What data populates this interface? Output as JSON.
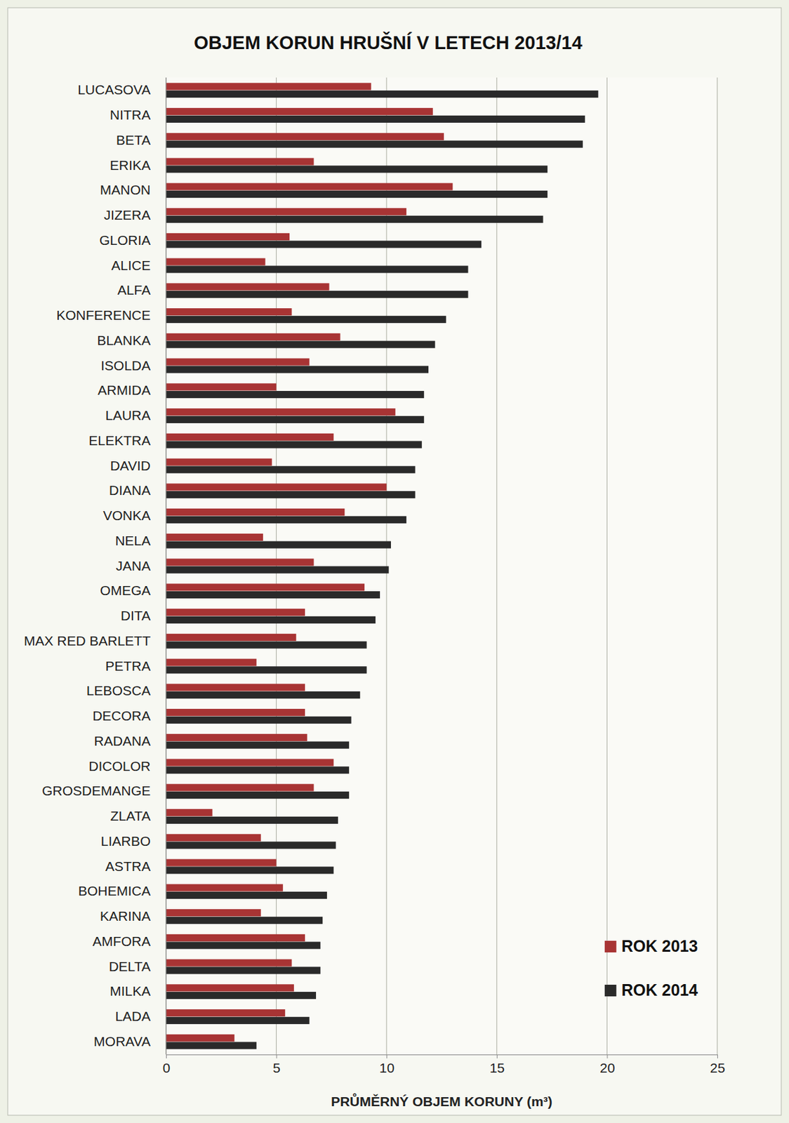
{
  "chart_data": {
    "type": "bar",
    "orientation": "horizontal",
    "title": "OBJEM KORUN HRUŠNÍ V LETECH 2013/14",
    "xlabel": "PRŮMĚRNÝ OBJEM KORUNY (m³)",
    "categories": [
      "LUCASOVA",
      "NITRA",
      "BETA",
      "ERIKA",
      "MANON",
      "JIZERA",
      "GLORIA",
      "ALICE",
      "ALFA",
      "KONFERENCE",
      "BLANKA",
      "ISOLDA",
      "ARMIDA",
      "LAURA",
      "ELEKTRA",
      "DAVID",
      "DIANA",
      "VONKA",
      "NELA",
      "JANA",
      "OMEGA",
      "DITA",
      "MAX RED BARLETT",
      "PETRA",
      "LEBOSCA",
      "DECORA",
      "RADANA",
      "DICOLOR",
      "GROSDEMANGE",
      "ZLATA",
      "LIARBO",
      "ASTRA",
      "BOHEMICA",
      "KARINA",
      "AMFORA",
      "DELTA",
      "MILKA",
      "LADA",
      "MORAVA"
    ],
    "series": [
      {
        "name": "ROK 2013",
        "color": "#a83434",
        "values": [
          9.3,
          12.1,
          12.6,
          6.7,
          13.0,
          10.9,
          5.6,
          4.5,
          7.4,
          5.7,
          7.9,
          6.5,
          5.0,
          10.4,
          7.6,
          4.8,
          10.0,
          8.1,
          4.4,
          6.7,
          9.0,
          6.3,
          5.9,
          4.1,
          6.3,
          6.3,
          6.4,
          7.6,
          6.7,
          2.1,
          4.3,
          5.0,
          5.3,
          4.3,
          6.3,
          5.7,
          5.8,
          5.4,
          3.1
        ]
      },
      {
        "name": "ROK 2014",
        "color": "#2a2a2a",
        "values": [
          19.6,
          19.0,
          18.9,
          17.3,
          17.3,
          17.1,
          14.3,
          13.7,
          13.7,
          12.7,
          12.2,
          11.9,
          11.7,
          11.7,
          11.6,
          11.3,
          11.3,
          10.9,
          10.2,
          10.1,
          9.7,
          9.5,
          9.1,
          9.1,
          8.8,
          8.4,
          8.3,
          8.3,
          8.3,
          7.8,
          7.7,
          7.6,
          7.3,
          7.1,
          7.0,
          7.0,
          6.8,
          6.5,
          4.1
        ]
      }
    ],
    "xlim": [
      0,
      25
    ],
    "xticks": [
      0,
      5,
      10,
      15,
      20,
      25
    ],
    "grid": true,
    "legend": "bottom-right"
  }
}
